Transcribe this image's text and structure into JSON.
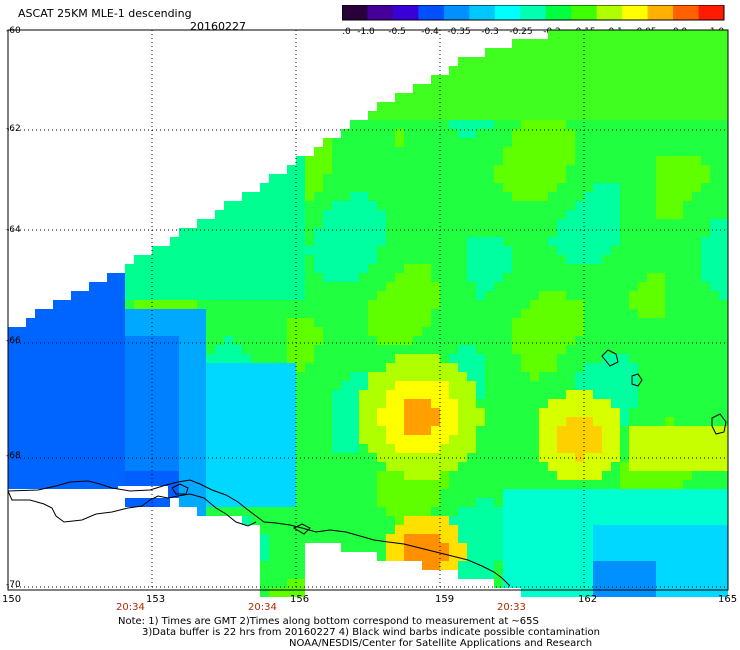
{
  "header": {
    "title": "ASCAT 25KM MLE-1 descending",
    "date": "20160227"
  },
  "colorbar": {
    "ticks": [
      "-3.0",
      "-1.0",
      "-0.5",
      "-0.4",
      "-0.35",
      "-0.3",
      "-0.25",
      "-0.2",
      "-0.15",
      "-0.1",
      "-0.05",
      "0.0",
      "1.0"
    ],
    "colors": [
      "#2a003a",
      "#46009a",
      "#3a00d8",
      "#0050ff",
      "#0090ff",
      "#00c8ff",
      "#00ffff",
      "#00ffb0",
      "#00ff40",
      "#40ff00",
      "#b0ff00",
      "#ffff00",
      "#ffb000",
      "#ff6000",
      "#ff1a00"
    ]
  },
  "axes": {
    "x_ticks": [
      "150",
      "153",
      "156",
      "159",
      "162",
      "165"
    ],
    "y_ticks": [
      "-60",
      "-62",
      "-64",
      "-66",
      "-68",
      "-70"
    ]
  },
  "times": [
    "20:34",
    "20:34",
    "20:33"
  ],
  "notes": {
    "line1": "Note: 1) Times are GMT 2)Times along bottom correspond to measurement at ~65S",
    "line2": "3)Data buffer is 22 hrs from 20160227 4) Black wind barbs indicate possible contamination",
    "line3": "NOAA/NESDIS/Center for Satellite Applications and Research"
  },
  "colors": {
    "grid": "#000000",
    "time_label": "#b22a00",
    "coastline": "#000000"
  }
}
